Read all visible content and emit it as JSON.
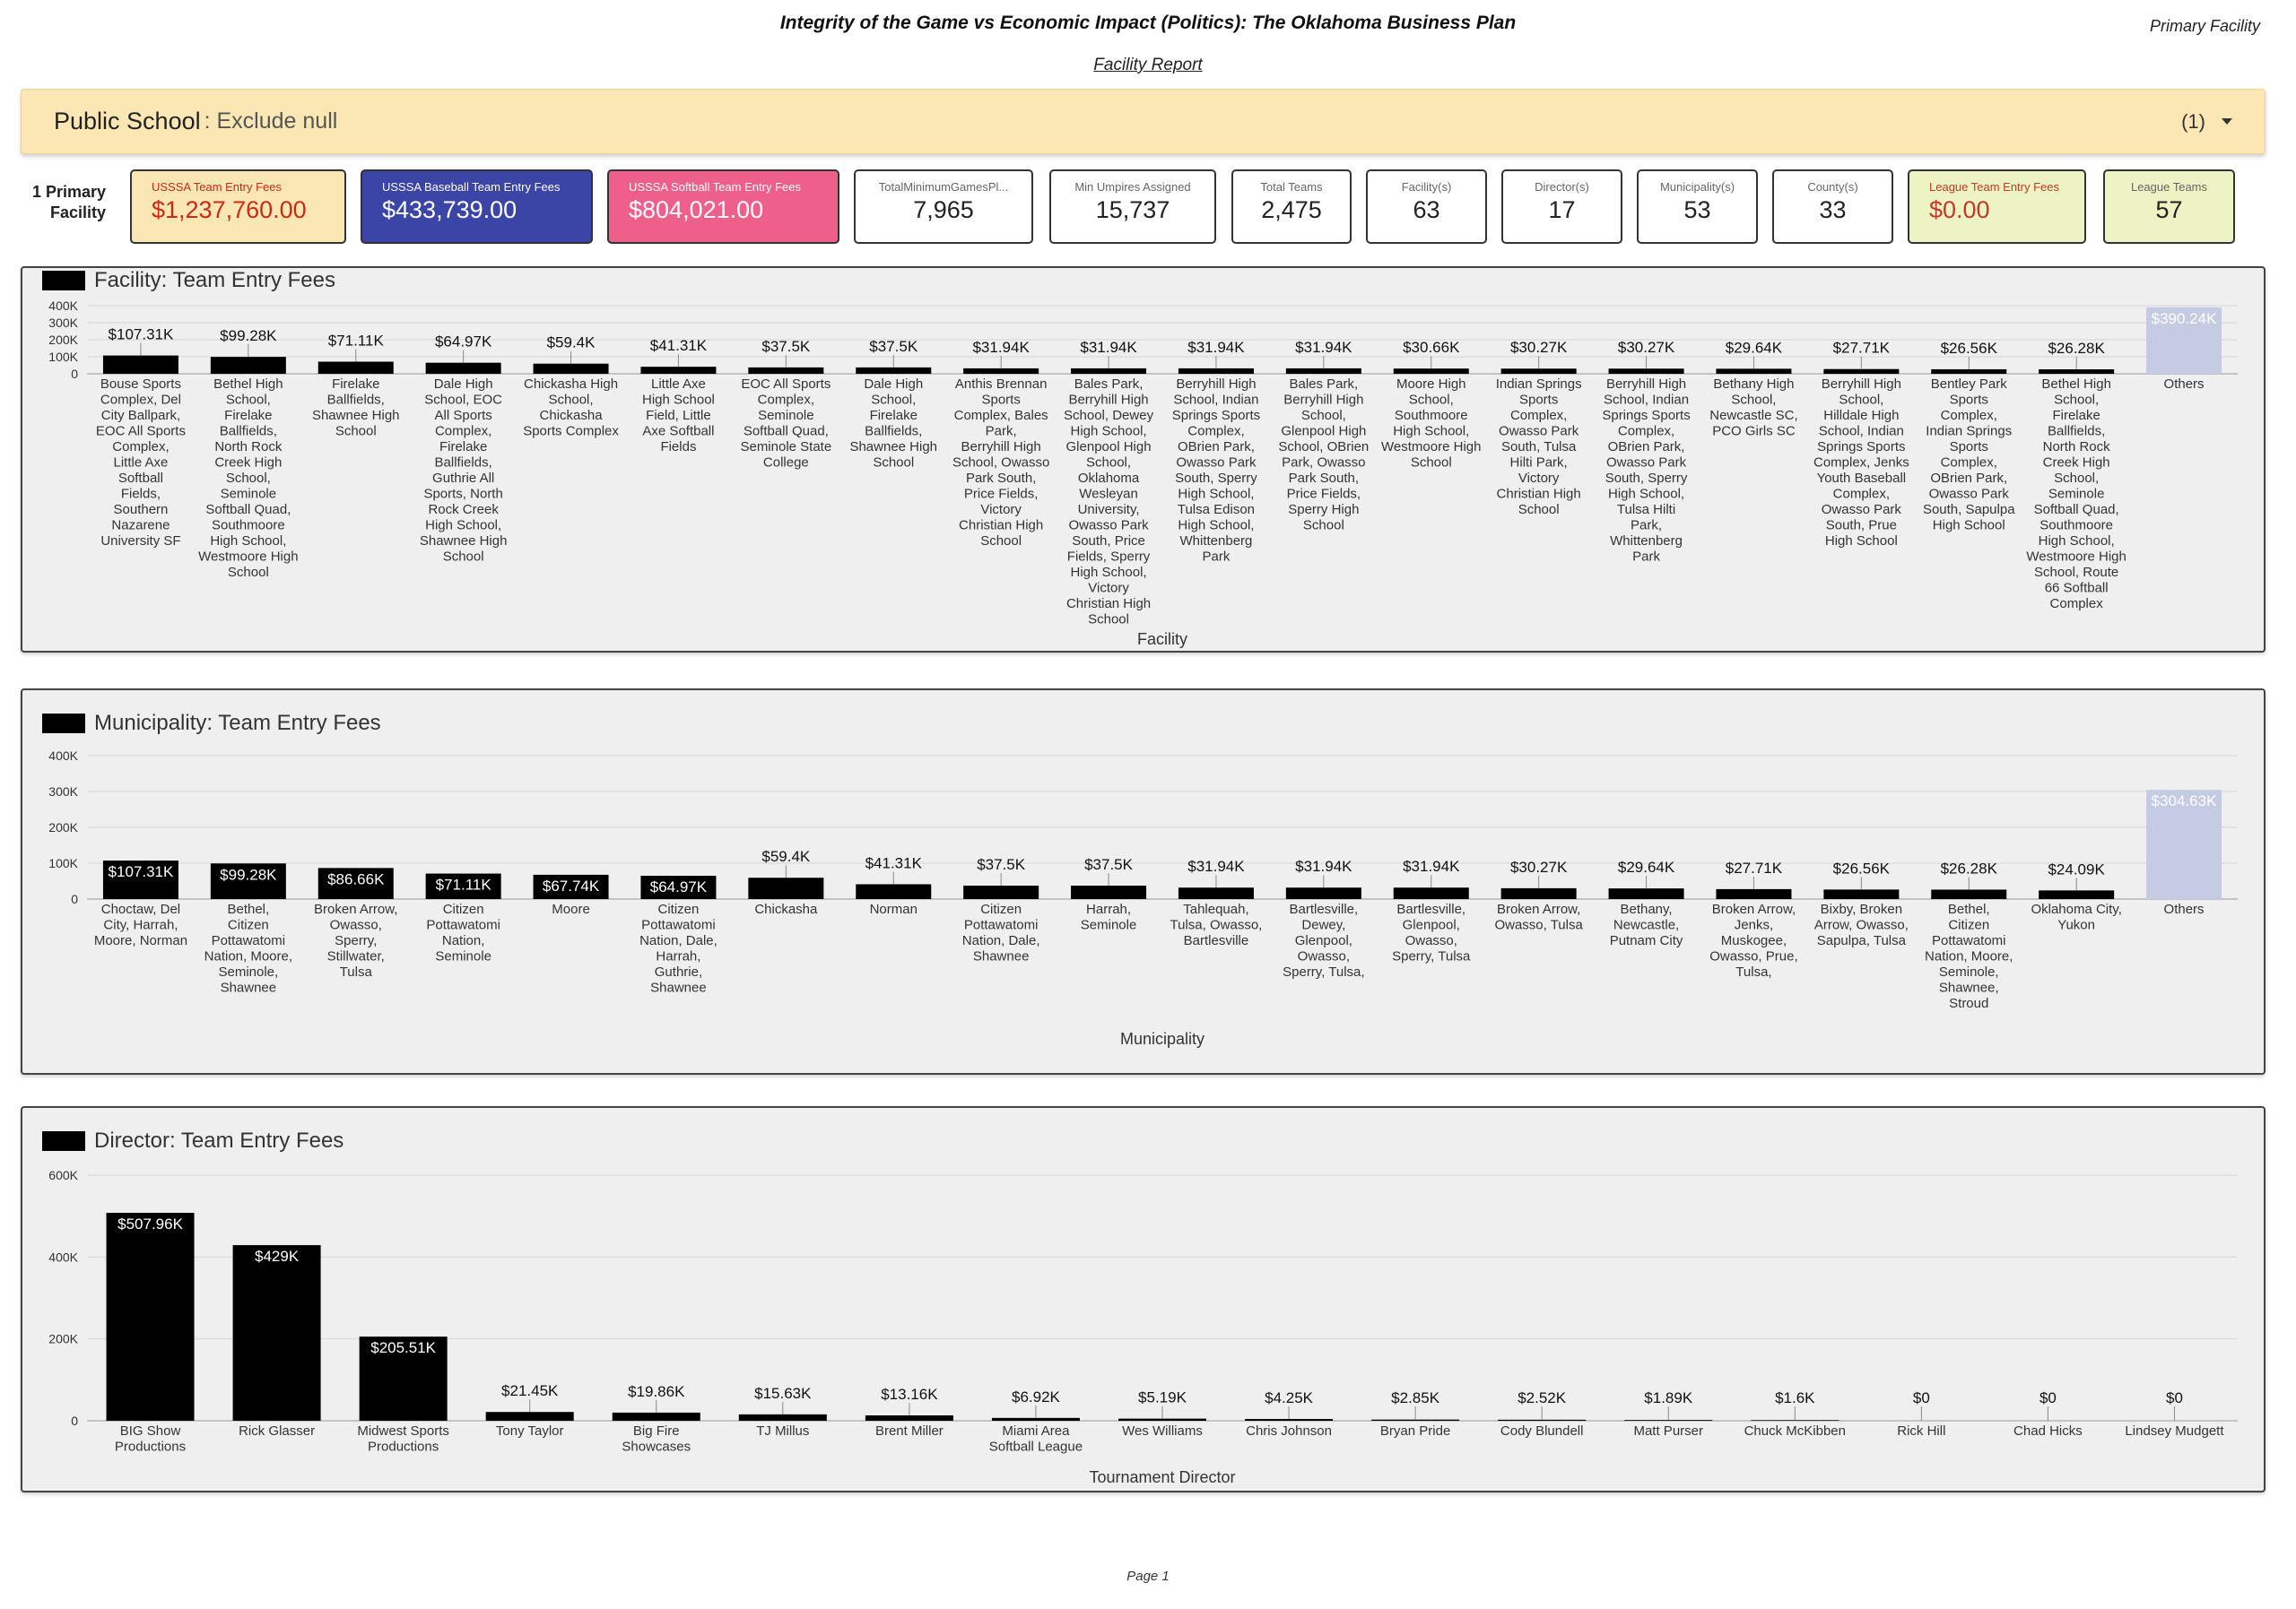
{
  "header": {
    "title": "Integrity of the Game vs Economic Impact (Politics): The Oklahoma Business Plan",
    "subtitle": "Facility Report",
    "corner_label": "Primary Facility"
  },
  "filter": {
    "name": "Public School",
    "value": ": Exclude null",
    "count": "(1)"
  },
  "kpi_row_label": "1 Primary Facility",
  "kpis": [
    {
      "label": "USSSA Team Entry Fees",
      "value": "$1,237,760.00"
    },
    {
      "label": "USSSA Baseball Team Entry Fees",
      "value": "$433,739.00"
    },
    {
      "label": "USSSA Softball Team Entry Fees",
      "value": "$804,021.00"
    },
    {
      "label": "TotalMinimumGamesPl...",
      "value": "7,965"
    },
    {
      "label": "Min Umpires Assigned",
      "value": "15,737"
    },
    {
      "label": "Total Teams",
      "value": "2,475"
    },
    {
      "label": "Facility(s)",
      "value": "63"
    },
    {
      "label": "Director(s)",
      "value": "17"
    },
    {
      "label": "Municipality(s)",
      "value": "53"
    },
    {
      "label": "County(s)",
      "value": "33"
    },
    {
      "label": "League Team Entry Fees",
      "value": "$0.00"
    },
    {
      "label": "League Teams",
      "value": "57"
    }
  ],
  "colors": {
    "bar": "#000000",
    "others_bar": "#c5cbe3",
    "orange_kpi": "#fbe7b3",
    "blue_kpi": "#3a45a6",
    "pink_kpi": "#ee5f8c"
  },
  "chart_data": [
    {
      "type": "bar",
      "title": "Facility: Team Entry Fees",
      "xlabel": "Facility",
      "ylabel": "",
      "ylim": [
        0,
        400000
      ],
      "yticks": [
        "0",
        "100K",
        "200K",
        "300K",
        "400K"
      ],
      "categories": [
        "Bouse Sports Complex, Del City Ballpark, EOC All Sports Complex, Little Axe Softball Fields, Southern Nazarene University SF",
        "Bethel High School, Firelake Ballfields, North Rock Creek High School, Seminole Softball Quad, Southmoore High School, Westmoore High School",
        "Firelake Ballfields, Shawnee High School",
        "Dale High School, EOC All Sports Complex, Firelake Ballfields, Guthrie All Sports, North Rock Creek High School, Shawnee High School",
        "Chickasha High School, Chickasha Sports Complex",
        "Little Axe High School Field, Little Axe Softball Fields",
        "EOC All Sports Complex, Seminole Softball Quad, Seminole State College",
        "Dale High School, Firelake Ballfields, Shawnee High School",
        "Anthis Brennan Sports Complex, Bales Park, Berryhill High School, Owasso Park South, Price Fields, Victory Christian High School",
        "Bales Park, Berryhill High School, Dewey High School, Glenpool High School, Oklahoma Wesleyan University, Owasso Park South, Price Fields, Sperry High School, Victory Christian High School",
        "Berryhill High School, Indian Springs Sports Complex, OBrien Park, Owasso Park South, Sperry High School, Tulsa Edison High School, Whittenberg Park",
        "Bales Park, Berryhill High School, Glenpool High School, OBrien Park, Owasso Park South, Price Fields, Sperry High School",
        "Moore High School, Southmoore High School, Westmoore High School",
        "Indian Springs Sports Complex, Owasso Park South, Tulsa Hilti Park, Victory Christian High School",
        "Berryhill High School, Indian Springs Sports Complex, OBrien Park, Owasso Park South, Sperry High School, Tulsa Hilti Park, Whittenberg Park",
        "Bethany High School, Newcastle SC, PCO Girls SC",
        "Berryhill High School, Hilldale High School, Indian Springs Sports Complex, Jenks Youth Baseball Complex, Owasso Park South, Prue High School",
        "Bentley Park Sports Complex, Indian Springs Sports Complex, OBrien Park, Owasso Park South, Sapulpa High School",
        "Bethel High School, Firelake Ballfields, North Rock Creek High School, Seminole Softball Quad, Southmoore High School, Westmoore High School, Route 66 Softball Complex",
        "Others"
      ],
      "values": [
        107310,
        99280,
        71110,
        64970,
        59400,
        41310,
        37500,
        37500,
        31940,
        31940,
        31940,
        31940,
        30660,
        30270,
        30270,
        29640,
        27710,
        26560,
        26280,
        390240
      ],
      "data_labels": [
        "$107.31K",
        "$99.28K",
        "$71.11K",
        "$64.97K",
        "$59.4K",
        "$41.31K",
        "$37.5K",
        "$37.5K",
        "$31.94K",
        "$31.94K",
        "$31.94K",
        "$31.94K",
        "$30.66K",
        "$30.27K",
        "$30.27K",
        "$29.64K",
        "$27.71K",
        "$26.56K",
        "$26.28K",
        "$390.24K"
      ],
      "grid": true,
      "legend": "top-left"
    },
    {
      "type": "bar",
      "title": "Municipality: Team Entry Fees",
      "xlabel": "Municipality",
      "ylabel": "",
      "ylim": [
        0,
        400000
      ],
      "yticks": [
        "0",
        "100K",
        "200K",
        "300K",
        "400K"
      ],
      "categories": [
        "Choctaw, Del City, Harrah, Moore, Norman",
        "Bethel, Citizen Pottawatomi Nation, Moore, Seminole, Shawnee",
        "Broken Arrow, Owasso, Sperry, Stillwater, Tulsa",
        "Citizen Pottawatomi Nation, Seminole",
        "Moore",
        "Citizen Pottawatomi Nation, Dale, Harrah, Guthrie, Shawnee",
        "Chickasha",
        "Norman",
        "Citizen Pottawatomi Nation, Dale, Shawnee",
        "Harrah, Seminole",
        "Tahlequah, Tulsa, Owasso, Bartlesville",
        "Bartlesville, Dewey, Glenpool, Owasso, Sperry, Tulsa,",
        "Bartlesville, Glenpool, Owasso, Sperry, Tulsa",
        "Broken Arrow, Owasso, Tulsa",
        "Bethany, Newcastle, Putnam City",
        "Broken Arrow, Jenks, Muskogee, Owasso, Prue, Tulsa,",
        "Bixby, Broken Arrow, Owasso, Sapulpa, Tulsa",
        "Bethel, Citizen Pottawatomi Nation, Moore, Seminole, Shawnee, Stroud",
        "Oklahoma City, Yukon",
        "Others"
      ],
      "values": [
        107310,
        99280,
        86660,
        71110,
        67740,
        64970,
        59400,
        41310,
        37500,
        37500,
        31940,
        31940,
        31940,
        30270,
        29640,
        27710,
        26560,
        26280,
        24090,
        304630
      ],
      "data_labels": [
        "$107.31K",
        "$99.28K",
        "$86.66K",
        "$71.11K",
        "$67.74K",
        "$64.97K",
        "$59.4K",
        "$41.31K",
        "$37.5K",
        "$37.5K",
        "$31.94K",
        "$31.94K",
        "$31.94K",
        "$30.27K",
        "$29.64K",
        "$27.71K",
        "$26.56K",
        "$26.28K",
        "$24.09K",
        "$304.63K"
      ],
      "grid": true,
      "legend": "top-left"
    },
    {
      "type": "bar",
      "title": "Director: Team Entry Fees",
      "xlabel": "Tournament Director",
      "ylabel": "",
      "ylim": [
        0,
        600000
      ],
      "yticks": [
        "0",
        "200K",
        "400K",
        "600K"
      ],
      "categories": [
        "BIG Show Productions",
        "Rick Glasser",
        "Midwest Sports Productions",
        "Tony Taylor",
        "Big Fire Showcases",
        "TJ Millus",
        "Brent Miller",
        "Miami Area Softball League",
        "Wes Williams",
        "Chris Johnson",
        "Bryan Pride",
        "Cody Blundell",
        "Matt Purser",
        "Chuck McKibben",
        "Rick Hill",
        "Chad Hicks",
        "Lindsey Mudgett"
      ],
      "values": [
        507960,
        429000,
        205510,
        21450,
        19860,
        15630,
        13160,
        6920,
        5190,
        4250,
        2850,
        2520,
        1890,
        1600,
        0,
        0,
        0
      ],
      "data_labels": [
        "$507.96K",
        "$429K",
        "$205.51K",
        "$21.45K",
        "$19.86K",
        "$15.63K",
        "$13.16K",
        "$6.92K",
        "$5.19K",
        "$4.25K",
        "$2.85K",
        "$2.52K",
        "$1.89K",
        "$1.6K",
        "$0",
        "$0",
        "$0"
      ],
      "grid": true,
      "legend": "top-left"
    }
  ],
  "footer": {
    "page": "Page 1"
  }
}
